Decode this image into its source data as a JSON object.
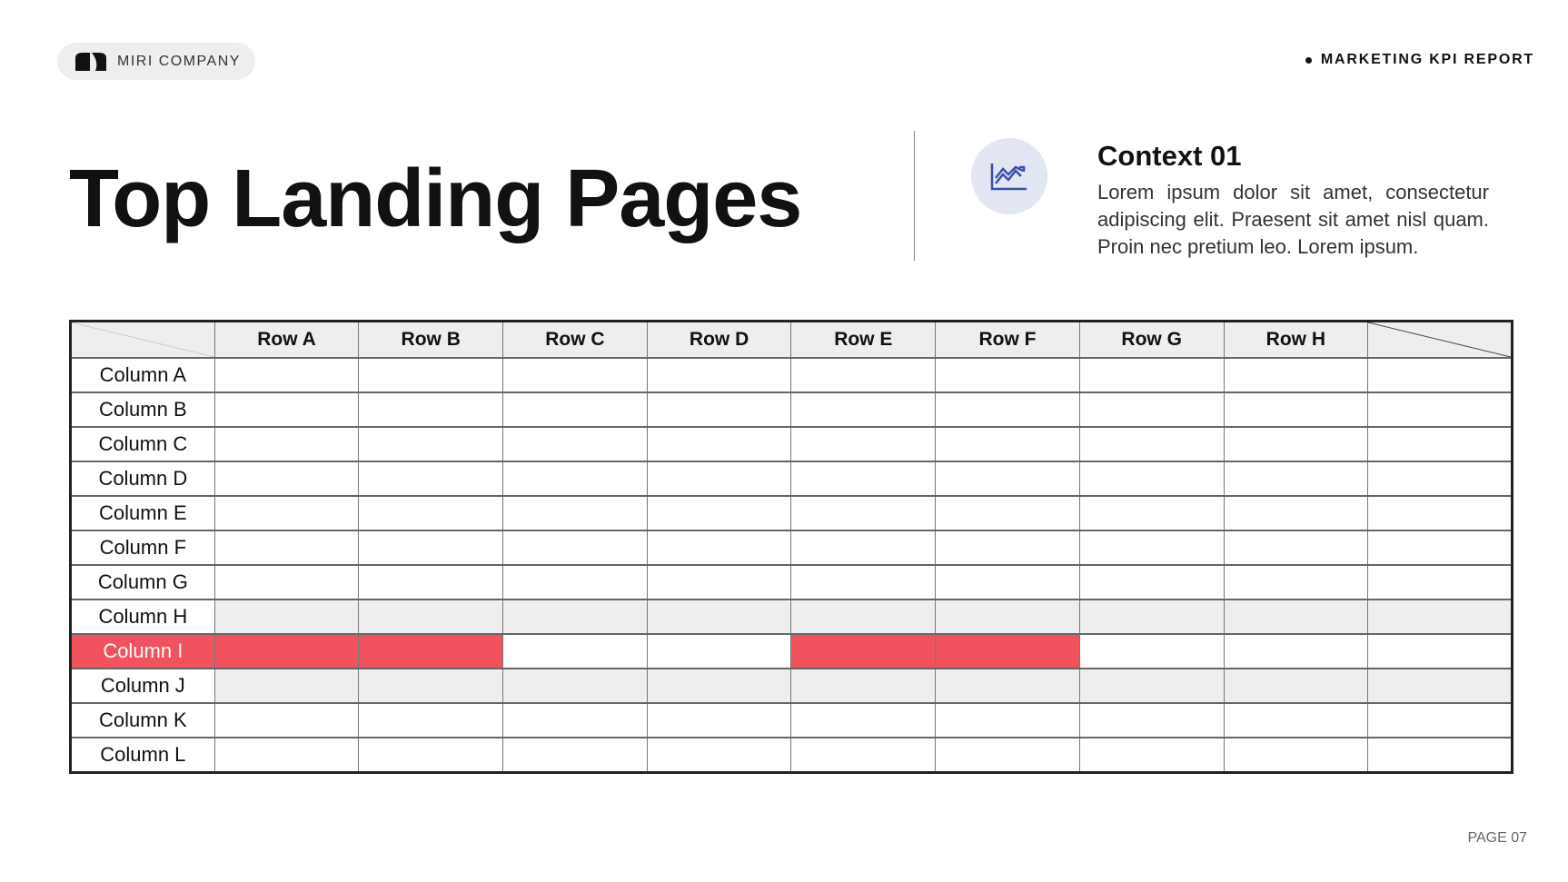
{
  "header": {
    "company": "MIRI COMPANY",
    "report": "MARKETING KPI REPORT"
  },
  "title": "Top Landing Pages",
  "context": {
    "icon": "line-chart-icon",
    "title": "Context 01",
    "body": "Lorem ipsum dolor sit amet, consectetur adipiscing elit. Praesent sit amet nisl quam. Proin nec pretium leo. Lorem ipsum."
  },
  "table": {
    "headers": [
      "Row A",
      "Row B",
      "Row C",
      "Row D",
      "Row E",
      "Row F",
      "Row G",
      "Row H"
    ],
    "rows": [
      {
        "label": "Column A"
      },
      {
        "label": "Column B"
      },
      {
        "label": "Column C"
      },
      {
        "label": "Column D"
      },
      {
        "label": "Column E"
      },
      {
        "label": "Column F"
      },
      {
        "label": "Column G"
      },
      {
        "label": "Column H",
        "shaded": true
      },
      {
        "label": "Column I",
        "highlight": true,
        "highlighted_columns": [
          "Row A",
          "Row B",
          "Row E",
          "Row F"
        ]
      },
      {
        "label": "Column J",
        "shaded": true
      },
      {
        "label": "Column K"
      },
      {
        "label": "Column L"
      }
    ]
  },
  "colors": {
    "highlight": "#f0525e",
    "shade": "#eeeeee",
    "icon_bg": "#e2e6f3",
    "icon": "#3a4fa8"
  },
  "footer": {
    "page": "PAGE 07"
  }
}
